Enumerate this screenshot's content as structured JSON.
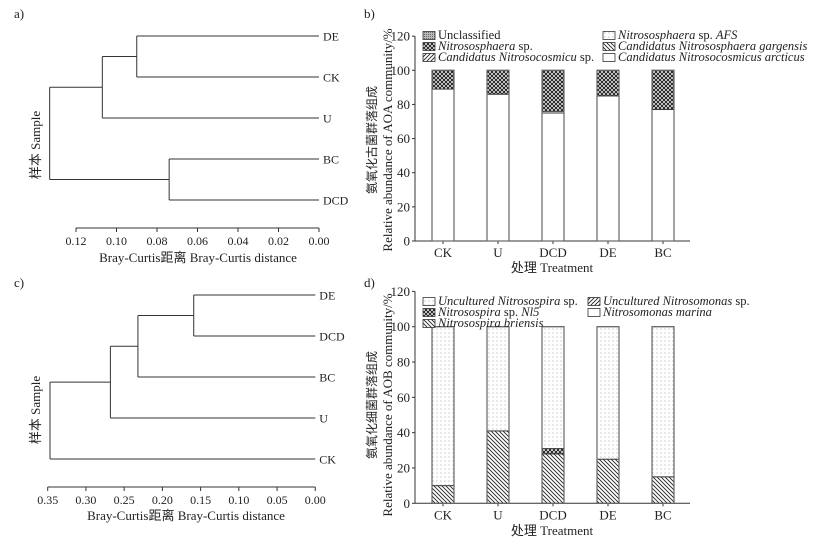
{
  "chart_data": [
    {
      "panel": "a)",
      "type": "dendrogram",
      "xlabel": "Bray-Curtis距离 Bray-Curtis distance",
      "ylabel": "样本 Sample",
      "xlim": [
        0.12,
        0.0
      ],
      "xticks": [
        "0.12",
        "0.10",
        "0.08",
        "0.06",
        "0.04",
        "0.02",
        "0.00"
      ],
      "xtick_values": [
        0.12,
        0.1,
        0.08,
        0.06,
        0.04,
        0.02,
        0.0
      ],
      "leaves": [
        "DE",
        "CK",
        "U",
        "BC",
        "DCD"
      ],
      "merges": [
        {
          "a": "DE",
          "b": "CK",
          "height": 0.09
        },
        {
          "a": "DE+CK",
          "b": "U",
          "height": 0.107
        },
        {
          "a": "BC",
          "b": "DCD",
          "height": 0.074
        },
        {
          "a": "DE+CK+U",
          "b": "BC+DCD",
          "height": 0.133
        }
      ]
    },
    {
      "panel": "b)",
      "type": "bar",
      "stacked": true,
      "xlabel": "处理 Treatment",
      "ylabel_cn": "氨氧化古菌群落组成",
      "ylabel": "Relative abundance of AOA community/%",
      "ylim": [
        0,
        120
      ],
      "yticks": [
        "0",
        "20",
        "40",
        "60",
        "80",
        "100",
        "120"
      ],
      "categories": [
        "CK",
        "U",
        "DCD",
        "DE",
        "BC"
      ],
      "legend": [
        {
          "name": "Unclassified",
          "italic_part": "",
          "suffix": "",
          "pattern": "dense-dots"
        },
        {
          "name": "",
          "italic_part": "Nitrososphaera",
          "suffix": " sp.",
          "pattern": "crosshatch"
        },
        {
          "name": "",
          "italic_part": "Candidatus Nitrosocosmicu",
          "suffix": " sp.",
          "pattern": "diag-up"
        },
        {
          "name": "",
          "italic_part": "Nitrososphaera",
          "suffix": " sp. AFS",
          "pattern": "dots"
        },
        {
          "name": "",
          "italic_part": "Candidatus Nitrososphaera gargensis",
          "suffix": "",
          "pattern": "diag-down"
        },
        {
          "name": "",
          "italic_part": "Candidatus Nitrosocosmicus arcticus",
          "suffix": "",
          "pattern": "white"
        }
      ],
      "series": [
        {
          "name": "Candidatus Nitrosocosmicus arcticus",
          "pattern": "white",
          "values": [
            89,
            86,
            75,
            85,
            77
          ]
        },
        {
          "name": "Nitrososphaera sp. AFS",
          "pattern": "dots",
          "values": [
            0,
            0,
            1,
            0,
            0
          ]
        },
        {
          "name": "Nitrososphaera sp.",
          "pattern": "crosshatch",
          "values": [
            11,
            14,
            24,
            15,
            23
          ]
        }
      ]
    },
    {
      "panel": "c)",
      "type": "dendrogram",
      "xlabel": "Bray-Curtis距离 Bray-Curtis distance",
      "ylabel": "样本 Sample",
      "xlim": [
        0.35,
        0.0
      ],
      "xticks": [
        "0.35",
        "0.30",
        "0.25",
        "0.20",
        "0.15",
        "0.10",
        "0.05",
        "0.00"
      ],
      "xtick_values": [
        0.35,
        0.3,
        0.25,
        0.2,
        0.15,
        0.1,
        0.05,
        0.0
      ],
      "leaves": [
        "DE",
        "DCD",
        "BC",
        "U",
        "CK"
      ],
      "merges": [
        {
          "a": "DE",
          "b": "DCD",
          "height": 0.159
        },
        {
          "a": "DE+DCD",
          "b": "BC",
          "height": 0.232
        },
        {
          "a": "DE+DCD+BC",
          "b": "U",
          "height": 0.268
        },
        {
          "a": "DE+DCD+BC+U",
          "b": "CK",
          "height": 0.347
        }
      ]
    },
    {
      "panel": "d)",
      "type": "bar",
      "stacked": true,
      "xlabel": "处理 Treatment",
      "ylabel_cn": "氨氧化细菌群落组成",
      "ylabel": "Relative abundance of AOB community/%",
      "ylim": [
        0,
        120
      ],
      "yticks": [
        "0",
        "20",
        "40",
        "60",
        "80",
        "100",
        "120"
      ],
      "categories": [
        "CK",
        "U",
        "DCD",
        "DE",
        "BC"
      ],
      "legend": [
        {
          "name": "",
          "italic_part": "Uncultured Nitrosospira",
          "suffix": " sp.",
          "pattern": "dots"
        },
        {
          "name": "",
          "italic_part": "Nitrosospira",
          "suffix": " sp. Nl5",
          "pattern": "crosshatch"
        },
        {
          "name": "",
          "italic_part": "Nitrosospira briensis",
          "suffix": "",
          "pattern": "diag-down"
        },
        {
          "name": "",
          "italic_part": "Uncultured Nitrosomonas",
          "suffix": " sp.",
          "pattern": "diag-up"
        },
        {
          "name": "",
          "italic_part": "Nitrosomonas marina",
          "suffix": "",
          "pattern": "white"
        }
      ],
      "series": [
        {
          "name": "Nitrosospira briensis",
          "pattern": "diag-down",
          "values": [
            10,
            41,
            28,
            25,
            15
          ]
        },
        {
          "name": "Nitrosospira sp. Nl5",
          "pattern": "crosshatch",
          "values": [
            0,
            0,
            3,
            0,
            0
          ]
        },
        {
          "name": "Uncultured Nitrosospira sp.",
          "pattern": "dots",
          "values": [
            90,
            59,
            69,
            75,
            85
          ]
        }
      ]
    }
  ]
}
